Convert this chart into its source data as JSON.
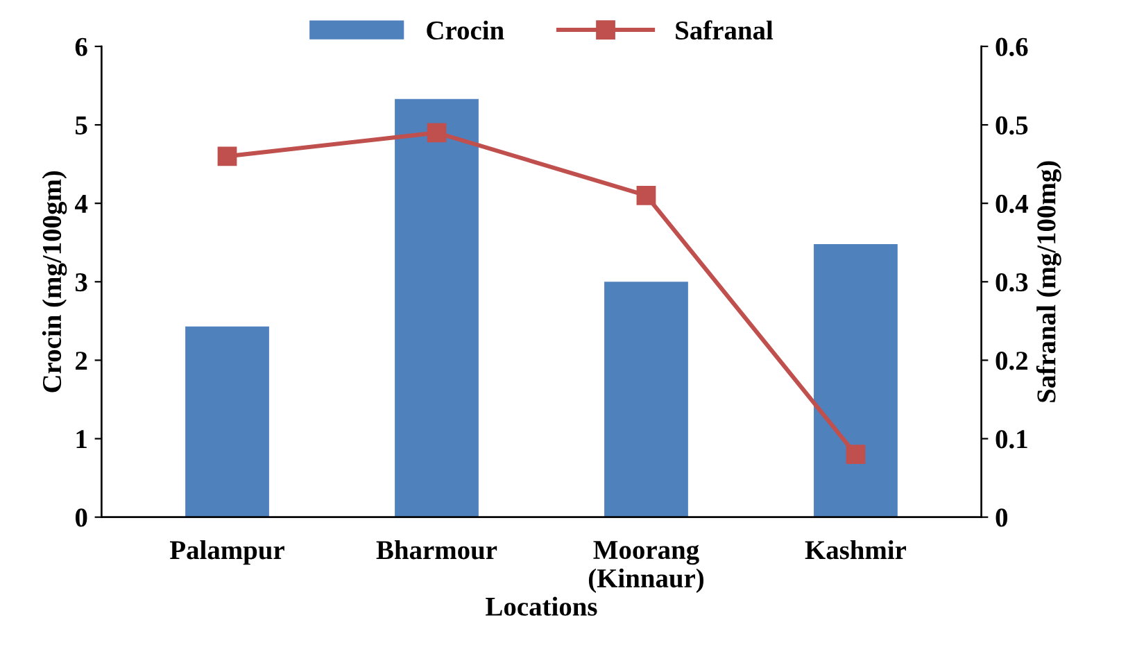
{
  "chart_data": {
    "type": "bar",
    "xlabel": "Locations",
    "ylabel": "Crocin (mg/100gm)",
    "y2label": "Safranal (mg/100mg)",
    "categories": [
      "Palampur",
      "Bharmour",
      "Moorang\n(Kinnaur)",
      "Kashmir"
    ],
    "series": [
      {
        "name": "Crocin",
        "color": "#4f81bd",
        "values": [
          2.43,
          5.33,
          3.0,
          3.48
        ]
      },
      {
        "name": "Safranal",
        "type": "line",
        "axis": "y2",
        "color": "#c0504d",
        "marker": "square",
        "values": [
          0.46,
          0.49,
          0.41,
          0.08
        ]
      }
    ],
    "ylim": [
      0,
      6
    ],
    "yticks": [
      0,
      1,
      2,
      3,
      4,
      5,
      6
    ],
    "y2lim": [
      0,
      0.6
    ],
    "y2ticks": [
      0,
      0.1,
      0.2,
      0.3,
      0.4,
      0.5,
      0.6
    ],
    "legend": "top",
    "grid": false
  }
}
